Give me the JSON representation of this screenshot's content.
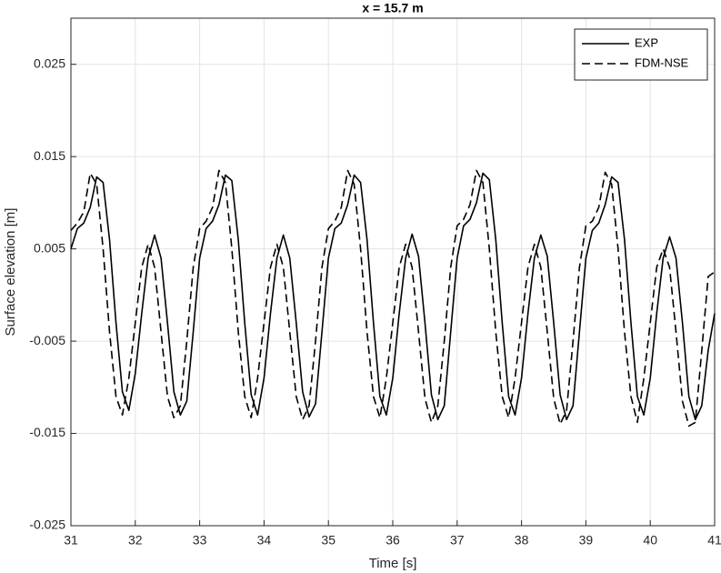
{
  "chart_data": {
    "type": "line",
    "title": "x = 15.7 m",
    "xlabel": "Time [s]",
    "ylabel": "Surface elevation [m]",
    "x": [
      31,
      31.1,
      31.2,
      31.3,
      31.4,
      31.5,
      31.6,
      31.7,
      31.8,
      31.9,
      32,
      32.1,
      32.2,
      32.3,
      32.4,
      32.5,
      32.6,
      32.7,
      32.8,
      32.9,
      33,
      33.1,
      33.2,
      33.3,
      33.4,
      33.5,
      33.6,
      33.7,
      33.8,
      33.9,
      34,
      34.1,
      34.2,
      34.3,
      34.4,
      34.5,
      34.6,
      34.7,
      34.8,
      34.9,
      35,
      35.1,
      35.2,
      35.3,
      35.4,
      35.5,
      35.6,
      35.7,
      35.8,
      35.9,
      36,
      36.1,
      36.2,
      36.3,
      36.4,
      36.5,
      36.6,
      36.7,
      36.8,
      36.9,
      37,
      37.1,
      37.2,
      37.3,
      37.4,
      37.5,
      37.6,
      37.7,
      37.8,
      37.9,
      38,
      38.1,
      38.2,
      38.3,
      38.4,
      38.5,
      38.6,
      38.7,
      38.8,
      38.9,
      39,
      39.1,
      39.2,
      39.3,
      39.4,
      39.5,
      39.6,
      39.7,
      39.8,
      39.9,
      40,
      40.1,
      40.2,
      40.3,
      40.4,
      40.5,
      40.6,
      40.7,
      40.8,
      40.9,
      41
    ],
    "series": [
      {
        "name": "EXP",
        "color": "#000000",
        "style": "solid",
        "values": [
          0.005,
          0.0072,
          0.0078,
          0.0095,
          0.0128,
          0.0122,
          0.006,
          -0.003,
          -0.0105,
          -0.0125,
          -0.0085,
          -0.002,
          0.004,
          0.0065,
          0.004,
          -0.003,
          -0.0105,
          -0.013,
          -0.0115,
          -0.004,
          0.004,
          0.0072,
          0.008,
          0.0098,
          0.013,
          0.0124,
          0.006,
          -0.003,
          -0.0108,
          -0.013,
          -0.009,
          -0.002,
          0.004,
          0.0065,
          0.004,
          -0.003,
          -0.0105,
          -0.0132,
          -0.0118,
          -0.004,
          0.004,
          0.0072,
          0.0078,
          0.0098,
          0.013,
          0.0122,
          0.006,
          -0.003,
          -0.011,
          -0.013,
          -0.009,
          -0.002,
          0.004,
          0.0066,
          0.0042,
          -0.003,
          -0.0108,
          -0.0135,
          -0.012,
          -0.004,
          0.004,
          0.0075,
          0.0082,
          0.01,
          0.0132,
          0.0125,
          0.006,
          -0.003,
          -0.011,
          -0.013,
          -0.009,
          -0.002,
          0.004,
          0.0065,
          0.0042,
          -0.003,
          -0.0108,
          -0.0135,
          -0.012,
          -0.004,
          0.004,
          0.007,
          0.0078,
          0.0098,
          0.0128,
          0.0122,
          0.006,
          -0.003,
          -0.011,
          -0.013,
          -0.009,
          -0.002,
          0.004,
          0.0063,
          0.004,
          -0.003,
          -0.011,
          -0.0135,
          -0.012,
          -0.006,
          -0.002
        ]
      },
      {
        "name": "FDM-NSE",
        "color": "#000000",
        "style": "dashed",
        "values": [
          0.007,
          0.0078,
          0.009,
          0.0132,
          0.012,
          0.005,
          -0.004,
          -0.011,
          -0.013,
          -0.009,
          -0.003,
          0.003,
          0.0055,
          0.003,
          -0.004,
          -0.011,
          -0.0133,
          -0.012,
          -0.005,
          0.003,
          0.0072,
          0.008,
          0.0095,
          0.0135,
          0.0122,
          0.005,
          -0.004,
          -0.011,
          -0.0133,
          -0.009,
          -0.003,
          0.003,
          0.0055,
          0.003,
          -0.004,
          -0.011,
          -0.0135,
          -0.012,
          -0.005,
          0.003,
          0.0072,
          0.008,
          0.0095,
          0.0135,
          0.012,
          0.005,
          -0.004,
          -0.011,
          -0.0133,
          -0.009,
          -0.003,
          0.003,
          0.0055,
          0.003,
          -0.004,
          -0.0112,
          -0.0138,
          -0.012,
          -0.005,
          0.003,
          0.0075,
          0.0082,
          0.0098,
          0.0135,
          0.0122,
          0.005,
          -0.004,
          -0.011,
          -0.0133,
          -0.009,
          -0.003,
          0.003,
          0.0055,
          0.003,
          -0.004,
          -0.0112,
          -0.014,
          -0.0125,
          -0.005,
          0.003,
          0.0075,
          0.008,
          0.0095,
          0.0133,
          0.012,
          0.005,
          -0.004,
          -0.011,
          -0.0138,
          -0.009,
          -0.003,
          0.003,
          0.005,
          0.003,
          -0.004,
          -0.0115,
          -0.0142,
          -0.0138,
          -0.006,
          0.002,
          0.0025
        ]
      }
    ],
    "xlim": [
      31,
      41
    ],
    "xticks": [
      31,
      32,
      33,
      34,
      35,
      36,
      37,
      38,
      39,
      40,
      41
    ],
    "ylim": [
      -0.025,
      0.03
    ],
    "yticks": [
      -0.025,
      -0.015,
      -0.005,
      0.005,
      0.015,
      0.025
    ],
    "grid": true,
    "legend": "upper right"
  }
}
